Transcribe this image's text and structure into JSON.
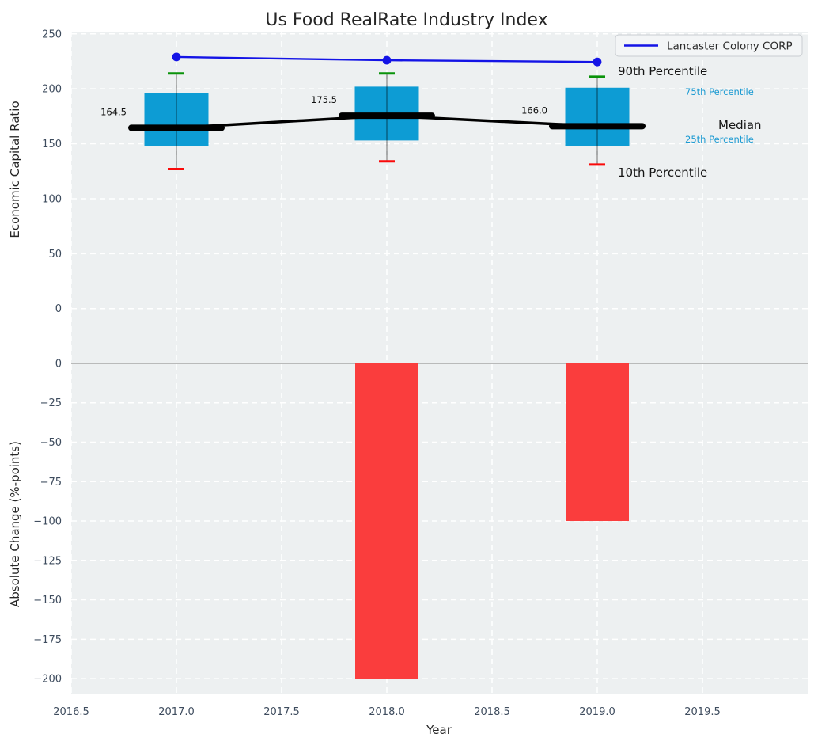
{
  "title": "Us Food RealRate Industry Index",
  "legend": {
    "label": "Lancaster Colony CORP"
  },
  "percentile_labels": {
    "p90": "90th Percentile",
    "p75": "75th Percentile",
    "median": "Median",
    "p25": "25th Percentile",
    "p10": "10th Percentile"
  },
  "x_axis": {
    "label": "Year",
    "tick_labels": [
      "2016.5",
      "2017.0",
      "2017.5",
      "2018.0",
      "2018.5",
      "2019.0",
      "2019.5"
    ],
    "tick_values": [
      2016.5,
      2017.0,
      2017.5,
      2018.0,
      2018.5,
      2019.0,
      2019.5
    ],
    "xlim": [
      2016.5,
      2020.0
    ]
  },
  "colors": {
    "background": "#edf0f1",
    "grid": "#ffffff",
    "box_fill": "#0d9cd4",
    "bar_fill": "#fa3d3d",
    "line_blue": "#1414e6",
    "cap_green": "#0a930a",
    "cap_red": "#fa0a0a",
    "median_black": "#000000",
    "whisker": "rgba(0,0,0,0.42)",
    "tick_text": "#3e4c5e",
    "percentile_blue": "#1b9ad2",
    "zero_line": "#a8a8a8"
  },
  "chart_data": [
    {
      "type": "boxplot",
      "title": "Us Food RealRate Industry Index",
      "ylabel": "Economic Capital Ratio",
      "ylim": [
        -42,
        252
      ],
      "ytick_values": [
        0,
        50,
        100,
        150,
        200,
        250
      ],
      "ytick_labels": [
        "0",
        "50",
        "100",
        "150",
        "200",
        "250"
      ],
      "grid": true,
      "legend_position": "upper right",
      "boxes": [
        {
          "x": 2017,
          "p10": 127,
          "p25": 148,
          "median": 164.5,
          "p75": 196,
          "p90": 214,
          "median_label": "164.5"
        },
        {
          "x": 2018,
          "p10": 134,
          "p25": 153,
          "median": 175.5,
          "p75": 202,
          "p90": 214,
          "median_label": "175.5"
        },
        {
          "x": 2019,
          "p10": 131,
          "p25": 148,
          "median": 166.0,
          "p75": 201,
          "p90": 211,
          "median_label": "166.0"
        }
      ],
      "line_series": {
        "name": "Lancaster Colony CORP",
        "x": [
          2017,
          2018,
          2019
        ],
        "values": [
          229,
          226,
          224.5
        ]
      }
    },
    {
      "type": "bar",
      "ylabel": "Absolute Change (%-points)",
      "ylim": [
        -210,
        5.5
      ],
      "ytick_values": [
        0,
        -25,
        -50,
        -75,
        -100,
        -125,
        -150,
        -175,
        -200
      ],
      "ytick_labels": [
        "0",
        "−25",
        "−50",
        "−75",
        "−100",
        "−125",
        "−150",
        "−175",
        "−200"
      ],
      "grid": true,
      "categories": [
        2017,
        2018,
        2019
      ],
      "values": [
        0,
        -200,
        -100
      ]
    }
  ]
}
